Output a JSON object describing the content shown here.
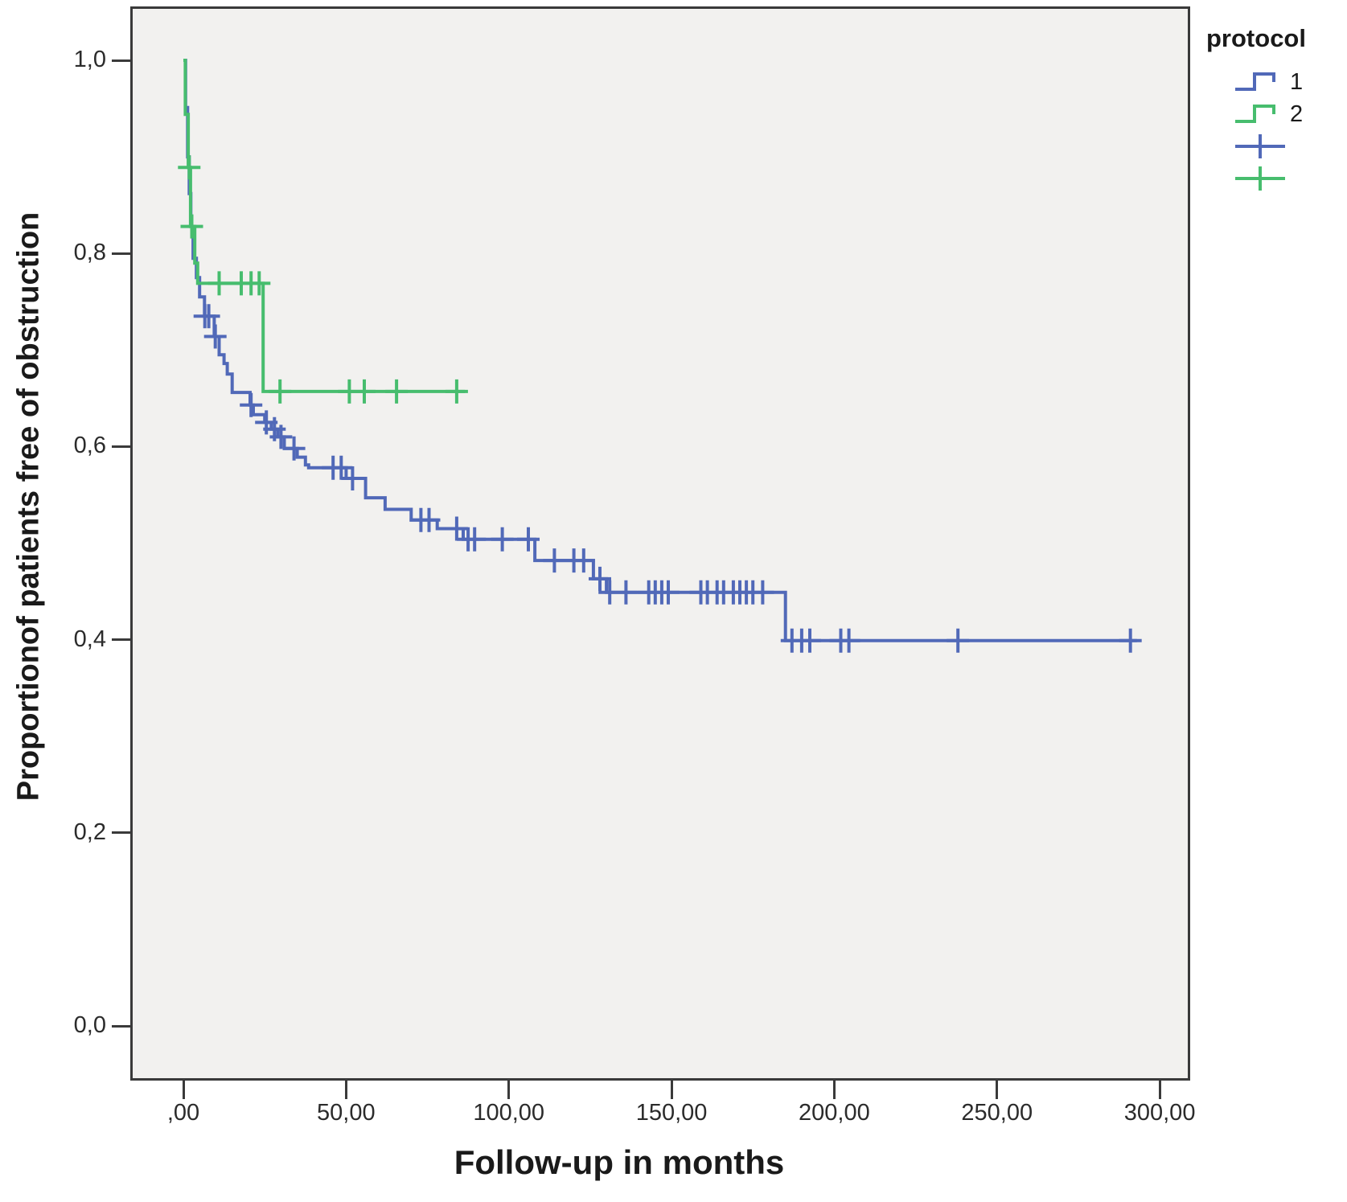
{
  "figure": {
    "background": "#ffffff",
    "plot_background": "#f2f1ef",
    "frame_color": "#3a3a3a",
    "text_color": "#1a1a1a"
  },
  "chart_data": {
    "type": "line",
    "subtype": "kaplan-meier-step-survival",
    "title": "",
    "xlabel": "Follow-up in months",
    "ylabel": "Proportionof patients free of obstruction",
    "xlim": [
      -16,
      310
    ],
    "ylim": [
      -0.056,
      1.056
    ],
    "grid": false,
    "x_ticks": [
      {
        "value": 0,
        "label": ",00"
      },
      {
        "value": 50,
        "label": "50,00"
      },
      {
        "value": 100,
        "label": "100,00"
      },
      {
        "value": 150,
        "label": "150,00"
      },
      {
        "value": 200,
        "label": "200,00"
      },
      {
        "value": 250,
        "label": "250,00"
      },
      {
        "value": 300,
        "label": "300,00"
      }
    ],
    "y_ticks": [
      {
        "value": 1.0,
        "label": "1,0"
      },
      {
        "value": 0.8,
        "label": "0,8"
      },
      {
        "value": 0.6,
        "label": "0,6"
      },
      {
        "value": 0.4,
        "label": "0,4"
      },
      {
        "value": 0.2,
        "label": "0,2"
      },
      {
        "value": 0.0,
        "label": "0,0"
      }
    ],
    "legend": {
      "title": "protocol",
      "position": "top-right-outside",
      "entries": [
        {
          "label": "1",
          "series": 0,
          "glyph": "step-line"
        },
        {
          "label": "2",
          "series": 1,
          "glyph": "step-line"
        },
        {
          "label": "",
          "series": 0,
          "glyph": "censor-plus"
        },
        {
          "label": "",
          "series": 1,
          "glyph": "censor-plus"
        }
      ]
    },
    "series": [
      {
        "name": "1",
        "color": "#5169b8",
        "steps": [
          [
            0,
            1.0
          ],
          [
            0.7,
            0.951
          ],
          [
            1.3,
            0.9
          ],
          [
            1.8,
            0.862
          ],
          [
            2.3,
            0.828
          ],
          [
            3.0,
            0.795
          ],
          [
            4.0,
            0.775
          ],
          [
            5.0,
            0.755
          ],
          [
            6.5,
            0.735
          ],
          [
            9.5,
            0.714
          ],
          [
            11.0,
            0.695
          ],
          [
            12.5,
            0.686
          ],
          [
            13.5,
            0.675
          ],
          [
            15.0,
            0.656
          ],
          [
            20.5,
            0.643
          ],
          [
            21.5,
            0.633
          ],
          [
            25.0,
            0.625
          ],
          [
            27.0,
            0.618
          ],
          [
            29.0,
            0.61
          ],
          [
            31.0,
            0.598
          ],
          [
            35.0,
            0.589
          ],
          [
            37.5,
            0.581
          ],
          [
            38.5,
            0.578
          ],
          [
            50.0,
            0.567
          ],
          [
            56.0,
            0.547
          ],
          [
            62.0,
            0.535
          ],
          [
            70.0,
            0.524
          ],
          [
            78.0,
            0.515
          ],
          [
            86.0,
            0.504
          ],
          [
            108.0,
            0.482
          ],
          [
            126.0,
            0.463
          ],
          [
            130.0,
            0.449
          ],
          [
            185.0,
            0.399
          ],
          [
            293.0,
            0.399
          ]
        ],
        "censored": [
          [
            6.6,
            0.735
          ],
          [
            7.8,
            0.735
          ],
          [
            9.8,
            0.714
          ],
          [
            20.8,
            0.643
          ],
          [
            25.5,
            0.625
          ],
          [
            28.0,
            0.618
          ],
          [
            30.0,
            0.61
          ],
          [
            34.0,
            0.598
          ],
          [
            46.0,
            0.578
          ],
          [
            48.5,
            0.578
          ],
          [
            52.0,
            0.567
          ],
          [
            73.0,
            0.524
          ],
          [
            75.5,
            0.524
          ],
          [
            84.0,
            0.515
          ],
          [
            87.5,
            0.504
          ],
          [
            89.5,
            0.504
          ],
          [
            98.0,
            0.504
          ],
          [
            106.0,
            0.504
          ],
          [
            114.0,
            0.482
          ],
          [
            120.0,
            0.482
          ],
          [
            123.0,
            0.482
          ],
          [
            128.0,
            0.463
          ],
          [
            131.0,
            0.449
          ],
          [
            136.0,
            0.449
          ],
          [
            143.0,
            0.449
          ],
          [
            145.0,
            0.449
          ],
          [
            147.0,
            0.449
          ],
          [
            149.0,
            0.449
          ],
          [
            159.0,
            0.449
          ],
          [
            161.0,
            0.449
          ],
          [
            164.0,
            0.449
          ],
          [
            166.0,
            0.449
          ],
          [
            169.0,
            0.449
          ],
          [
            171.0,
            0.449
          ],
          [
            173.0,
            0.449
          ],
          [
            175.0,
            0.449
          ],
          [
            178.0,
            0.449
          ],
          [
            187.0,
            0.399
          ],
          [
            190.0,
            0.399
          ],
          [
            192.5,
            0.399
          ],
          [
            202.0,
            0.399
          ],
          [
            204.5,
            0.399
          ],
          [
            238.0,
            0.399
          ],
          [
            291.0,
            0.399
          ]
        ]
      },
      {
        "name": "2",
        "color": "#47bd6e",
        "steps": [
          [
            0,
            1.0
          ],
          [
            0.6,
            0.944
          ],
          [
            1.5,
            0.889
          ],
          [
            2.2,
            0.828
          ],
          [
            3.5,
            0.79
          ],
          [
            4.4,
            0.769
          ],
          [
            24.5,
            0.657
          ],
          [
            86.5,
            0.657
          ]
        ],
        "censored": [
          [
            1.8,
            0.889
          ],
          [
            2.6,
            0.828
          ],
          [
            11.0,
            0.769
          ],
          [
            17.8,
            0.769
          ],
          [
            20.8,
            0.769
          ],
          [
            23.3,
            0.769
          ],
          [
            29.7,
            0.657
          ],
          [
            51.0,
            0.657
          ],
          [
            55.6,
            0.657
          ],
          [
            65.5,
            0.657
          ],
          [
            84.0,
            0.657
          ]
        ]
      }
    ]
  }
}
